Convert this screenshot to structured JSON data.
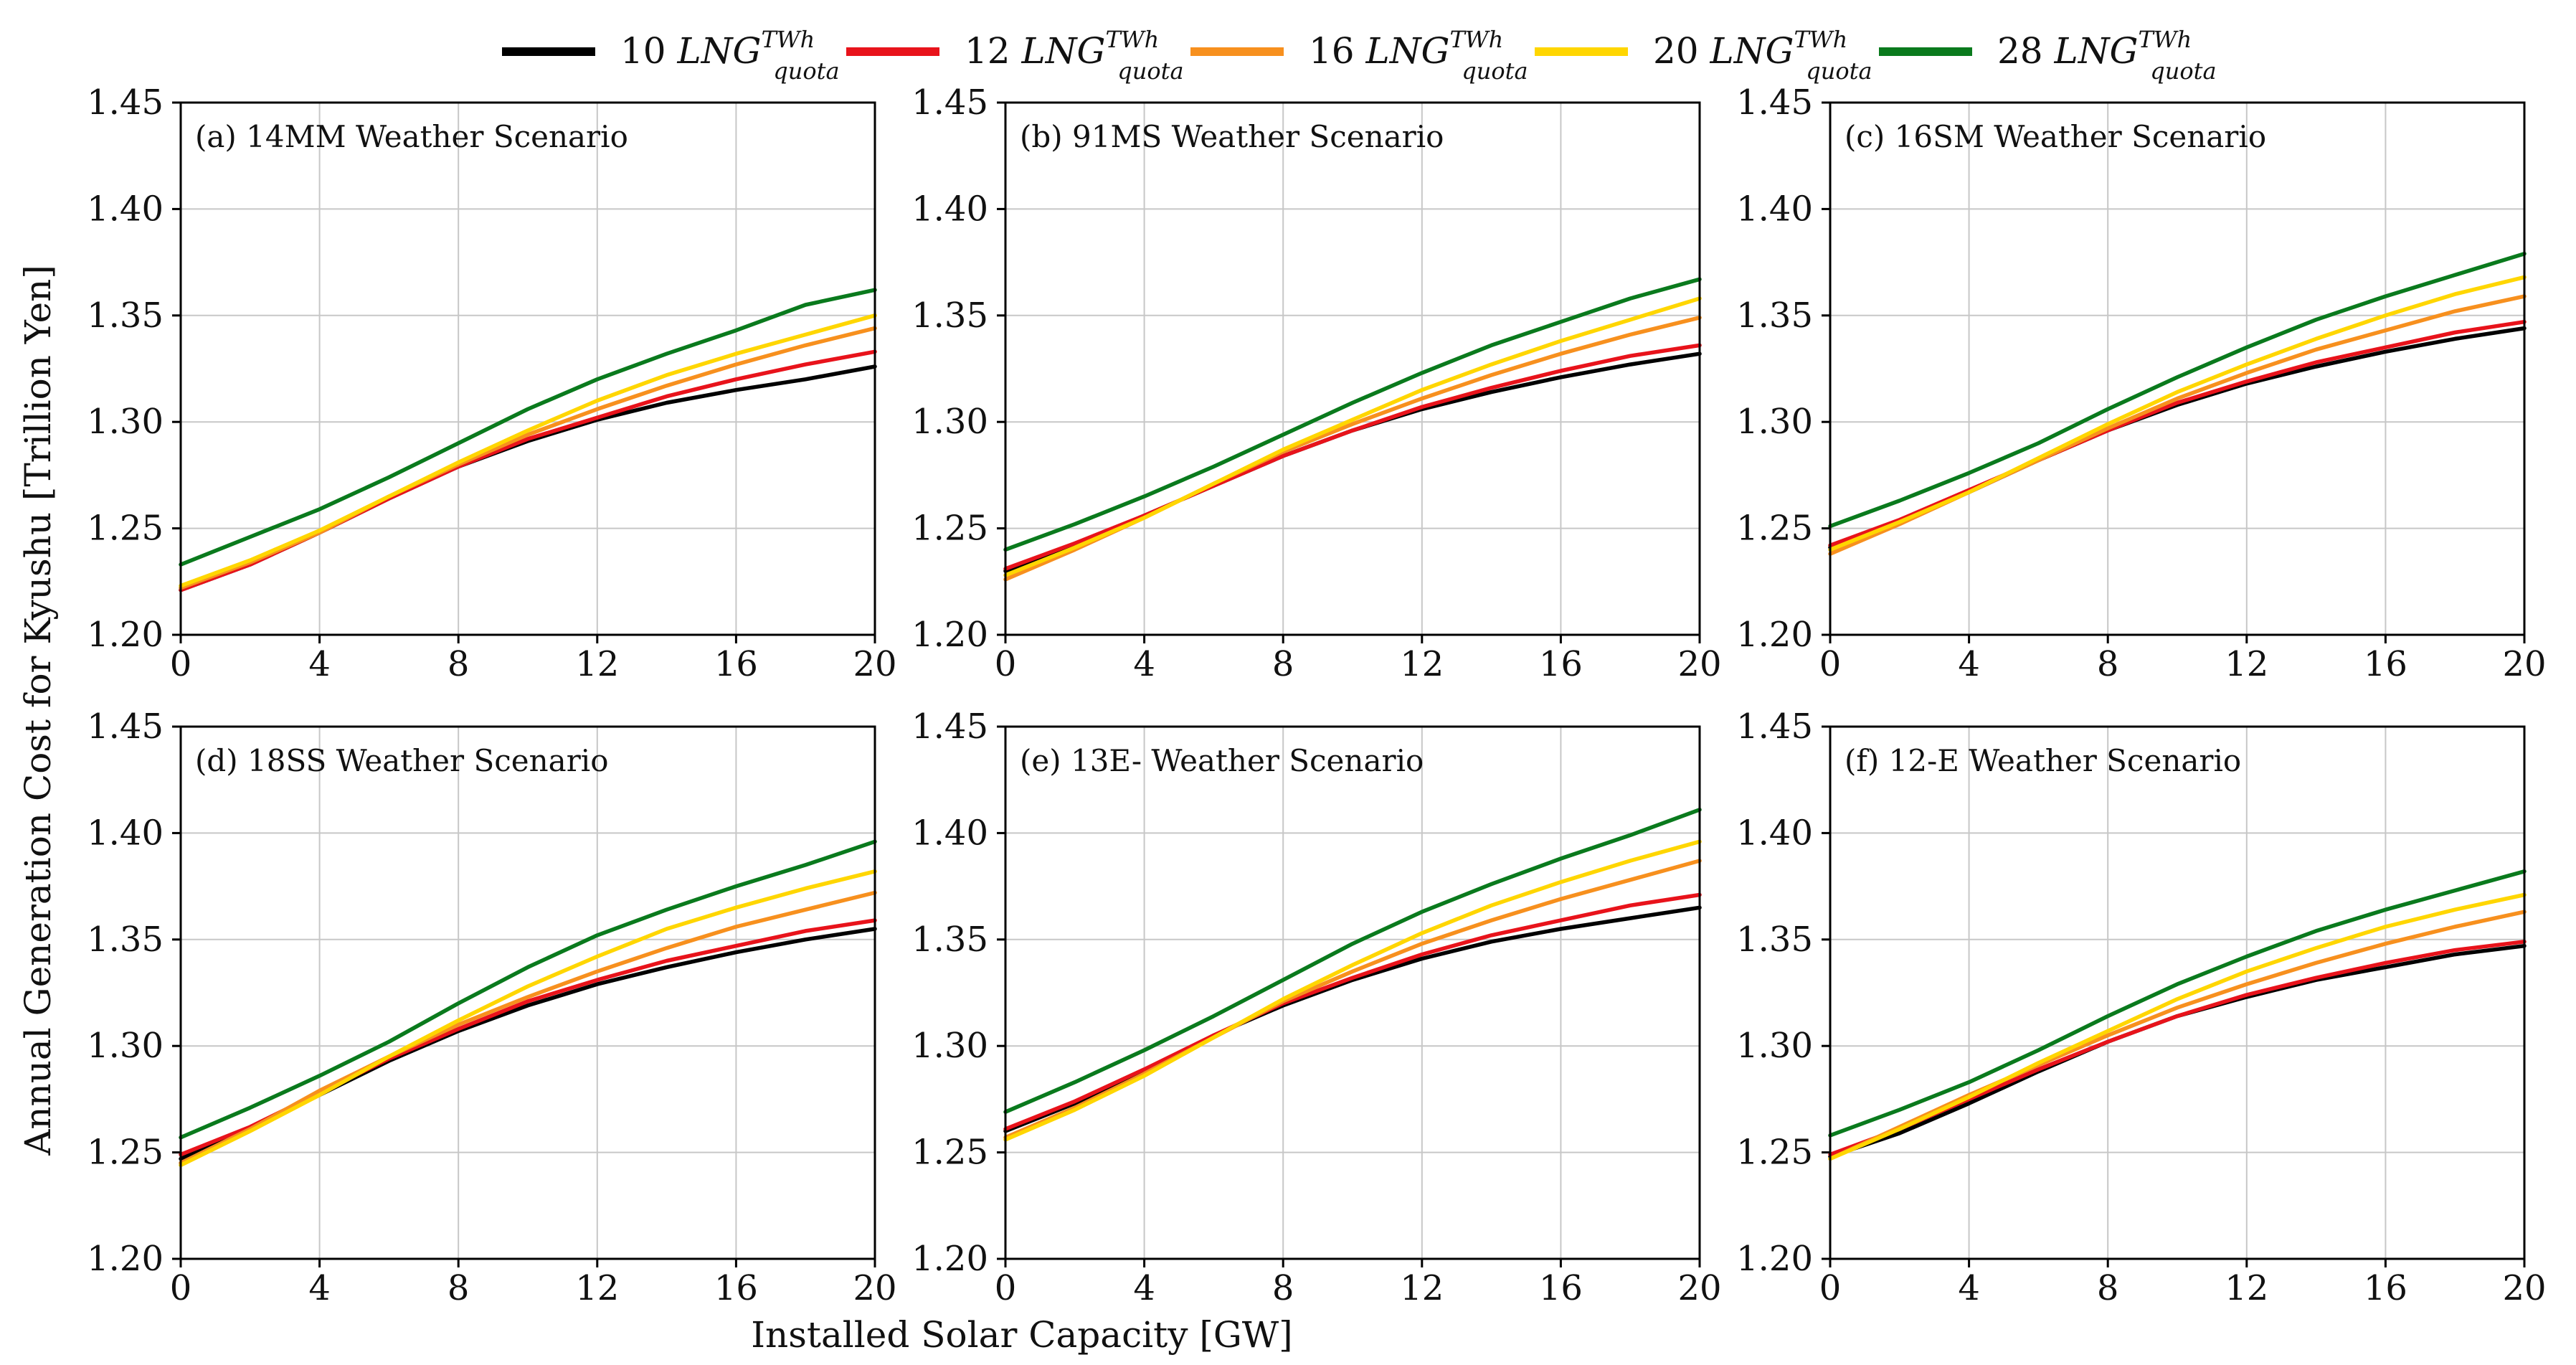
{
  "figure": {
    "ylabel": "Annual Generation Cost for Kyushu [Trillion Yen]",
    "xlabel": "Installed Solar Capacity [GW]"
  },
  "legend": {
    "symbol": "LNG",
    "superscript": "TWh",
    "subscript": "quota",
    "entries": [
      {
        "number": "10",
        "color": "#000000"
      },
      {
        "number": "12",
        "color": "#e8131b"
      },
      {
        "number": "16",
        "color": "#f7901e"
      },
      {
        "number": "20",
        "color": "#ffd600"
      },
      {
        "number": "28",
        "color": "#0a7a1d"
      }
    ]
  },
  "chart_data": [
    {
      "type": "line",
      "title": "(a) 14MM Weather Scenario",
      "xlabel": "Installed Solar Capacity [GW]",
      "ylabel": "Annual Generation Cost for Kyushu [Trillion Yen]",
      "x": [
        0,
        2,
        4,
        6,
        8,
        10,
        12,
        14,
        16,
        18,
        20
      ],
      "xlim": [
        0,
        20
      ],
      "ylim": [
        1.2,
        1.45
      ],
      "xticks": [
        0,
        4,
        8,
        12,
        16,
        20
      ],
      "yticks": [
        "1.20",
        "1.25",
        "1.30",
        "1.35",
        "1.40",
        "1.45"
      ],
      "grid": true,
      "series": [
        {
          "name": "10 LNG quota TWh",
          "values": [
            1.221,
            1.233,
            1.248,
            1.264,
            1.279,
            1.291,
            1.301,
            1.309,
            1.315,
            1.32,
            1.326
          ]
        },
        {
          "name": "12 LNG quota TWh",
          "values": [
            1.221,
            1.233,
            1.248,
            1.264,
            1.279,
            1.292,
            1.302,
            1.312,
            1.32,
            1.327,
            1.333
          ]
        },
        {
          "name": "16 LNG quota TWh",
          "values": [
            1.222,
            1.234,
            1.248,
            1.265,
            1.28,
            1.294,
            1.306,
            1.317,
            1.327,
            1.336,
            1.344
          ]
        },
        {
          "name": "20 LNG quota TWh",
          "values": [
            1.223,
            1.235,
            1.249,
            1.265,
            1.281,
            1.296,
            1.31,
            1.322,
            1.332,
            1.341,
            1.35
          ]
        },
        {
          "name": "28 LNG quota TWh",
          "values": [
            1.233,
            1.246,
            1.259,
            1.274,
            1.29,
            1.306,
            1.32,
            1.332,
            1.343,
            1.355,
            1.362
          ]
        }
      ]
    },
    {
      "type": "line",
      "title": "(b) 91MS Weather Scenario",
      "xlabel": "Installed Solar Capacity [GW]",
      "ylabel": "Annual Generation Cost for Kyushu [Trillion Yen]",
      "x": [
        0,
        2,
        4,
        6,
        8,
        10,
        12,
        14,
        16,
        18,
        20
      ],
      "xlim": [
        0,
        20
      ],
      "ylim": [
        1.2,
        1.45
      ],
      "xticks": [
        0,
        4,
        8,
        12,
        16,
        20
      ],
      "yticks": [
        "1.20",
        "1.25",
        "1.30",
        "1.35",
        "1.40",
        "1.45"
      ],
      "grid": true,
      "series": [
        {
          "name": "10 LNG quota TWh",
          "values": [
            1.23,
            1.242,
            1.256,
            1.27,
            1.284,
            1.296,
            1.306,
            1.314,
            1.321,
            1.327,
            1.332
          ]
        },
        {
          "name": "12 LNG quota TWh",
          "values": [
            1.231,
            1.243,
            1.256,
            1.27,
            1.284,
            1.296,
            1.307,
            1.316,
            1.324,
            1.331,
            1.336
          ]
        },
        {
          "name": "16 LNG quota TWh",
          "values": [
            1.226,
            1.24,
            1.255,
            1.271,
            1.286,
            1.299,
            1.311,
            1.322,
            1.332,
            1.341,
            1.349
          ]
        },
        {
          "name": "20 LNG quota TWh",
          "values": [
            1.228,
            1.241,
            1.255,
            1.271,
            1.287,
            1.301,
            1.315,
            1.327,
            1.338,
            1.348,
            1.358
          ]
        },
        {
          "name": "28 LNG quota TWh",
          "values": [
            1.24,
            1.252,
            1.265,
            1.279,
            1.294,
            1.309,
            1.323,
            1.336,
            1.347,
            1.358,
            1.367
          ]
        }
      ]
    },
    {
      "type": "line",
      "title": "(c) 16SM Weather Scenario",
      "xlabel": "Installed Solar Capacity [GW]",
      "ylabel": "Annual Generation Cost for Kyushu [Trillion Yen]",
      "x": [
        0,
        2,
        4,
        6,
        8,
        10,
        12,
        14,
        16,
        18,
        20
      ],
      "xlim": [
        0,
        20
      ],
      "ylim": [
        1.2,
        1.45
      ],
      "xticks": [
        0,
        4,
        8,
        12,
        16,
        20
      ],
      "yticks": [
        "1.20",
        "1.25",
        "1.30",
        "1.35",
        "1.40",
        "1.45"
      ],
      "grid": true,
      "series": [
        {
          "name": "10 LNG quota TWh",
          "values": [
            1.241,
            1.253,
            1.267,
            1.282,
            1.296,
            1.308,
            1.318,
            1.326,
            1.333,
            1.339,
            1.344
          ]
        },
        {
          "name": "12 LNG quota TWh",
          "values": [
            1.242,
            1.254,
            1.268,
            1.282,
            1.296,
            1.309,
            1.319,
            1.328,
            1.335,
            1.342,
            1.347
          ]
        },
        {
          "name": "16 LNG quota TWh",
          "values": [
            1.238,
            1.252,
            1.267,
            1.282,
            1.297,
            1.311,
            1.323,
            1.334,
            1.343,
            1.352,
            1.359
          ]
        },
        {
          "name": "20 LNG quota TWh",
          "values": [
            1.24,
            1.253,
            1.267,
            1.283,
            1.299,
            1.314,
            1.327,
            1.339,
            1.35,
            1.36,
            1.368
          ]
        },
        {
          "name": "28 LNG quota TWh",
          "values": [
            1.251,
            1.263,
            1.276,
            1.29,
            1.306,
            1.321,
            1.335,
            1.348,
            1.359,
            1.369,
            1.379
          ]
        }
      ]
    },
    {
      "type": "line",
      "title": "(d) 18SS Weather Scenario",
      "xlabel": "Installed Solar Capacity [GW]",
      "ylabel": "Annual Generation Cost for Kyushu [Trillion Yen]",
      "x": [
        0,
        2,
        4,
        6,
        8,
        10,
        12,
        14,
        16,
        18,
        20
      ],
      "xlim": [
        0,
        20
      ],
      "ylim": [
        1.2,
        1.45
      ],
      "xticks": [
        0,
        4,
        8,
        12,
        16,
        20
      ],
      "yticks": [
        "1.20",
        "1.25",
        "1.30",
        "1.35",
        "1.40",
        "1.45"
      ],
      "grid": true,
      "series": [
        {
          "name": "10 LNG quota TWh",
          "values": [
            1.247,
            1.261,
            1.277,
            1.293,
            1.307,
            1.319,
            1.329,
            1.337,
            1.344,
            1.35,
            1.355
          ]
        },
        {
          "name": "12 LNG quota TWh",
          "values": [
            1.249,
            1.262,
            1.278,
            1.294,
            1.308,
            1.321,
            1.331,
            1.34,
            1.347,
            1.354,
            1.359
          ]
        },
        {
          "name": "16 LNG quota TWh",
          "values": [
            1.245,
            1.261,
            1.279,
            1.295,
            1.31,
            1.323,
            1.335,
            1.346,
            1.356,
            1.364,
            1.372
          ]
        },
        {
          "name": "20 LNG quota TWh",
          "values": [
            1.244,
            1.26,
            1.277,
            1.295,
            1.312,
            1.328,
            1.342,
            1.355,
            1.365,
            1.374,
            1.382
          ]
        },
        {
          "name": "28 LNG quota TWh",
          "values": [
            1.257,
            1.271,
            1.286,
            1.302,
            1.32,
            1.337,
            1.352,
            1.364,
            1.375,
            1.385,
            1.396
          ]
        }
      ]
    },
    {
      "type": "line",
      "title": "(e) 13E- Weather Scenario",
      "xlabel": "Installed Solar Capacity [GW]",
      "ylabel": "Annual Generation Cost for Kyushu [Trillion Yen]",
      "x": [
        0,
        2,
        4,
        6,
        8,
        10,
        12,
        14,
        16,
        18,
        20
      ],
      "xlim": [
        0,
        20
      ],
      "ylim": [
        1.2,
        1.45
      ],
      "xticks": [
        0,
        4,
        8,
        12,
        16,
        20
      ],
      "yticks": [
        "1.20",
        "1.25",
        "1.30",
        "1.35",
        "1.40",
        "1.45"
      ],
      "grid": true,
      "series": [
        {
          "name": "10 LNG quota TWh",
          "values": [
            1.26,
            1.273,
            1.288,
            1.305,
            1.319,
            1.331,
            1.341,
            1.349,
            1.355,
            1.36,
            1.365
          ]
        },
        {
          "name": "12 LNG quota TWh",
          "values": [
            1.261,
            1.274,
            1.289,
            1.305,
            1.32,
            1.332,
            1.343,
            1.352,
            1.359,
            1.366,
            1.371
          ]
        },
        {
          "name": "16 LNG quota TWh",
          "values": [
            1.257,
            1.271,
            1.287,
            1.304,
            1.321,
            1.335,
            1.348,
            1.359,
            1.369,
            1.378,
            1.387
          ]
        },
        {
          "name": "20 LNG quota TWh",
          "values": [
            1.256,
            1.27,
            1.286,
            1.304,
            1.322,
            1.338,
            1.353,
            1.366,
            1.377,
            1.387,
            1.396
          ]
        },
        {
          "name": "28 LNG quota TWh",
          "values": [
            1.269,
            1.283,
            1.298,
            1.314,
            1.331,
            1.348,
            1.363,
            1.376,
            1.388,
            1.399,
            1.411
          ]
        }
      ]
    },
    {
      "type": "line",
      "title": "(f) 12-E Weather Scenario",
      "xlabel": "Installed Solar Capacity [GW]",
      "ylabel": "Annual Generation Cost for Kyushu [Trillion Yen]",
      "x": [
        0,
        2,
        4,
        6,
        8,
        10,
        12,
        14,
        16,
        18,
        20
      ],
      "xlim": [
        0,
        20
      ],
      "ylim": [
        1.2,
        1.45
      ],
      "xticks": [
        0,
        4,
        8,
        12,
        16,
        20
      ],
      "yticks": [
        "1.20",
        "1.25",
        "1.30",
        "1.35",
        "1.40",
        "1.45"
      ],
      "grid": true,
      "series": [
        {
          "name": "10 LNG quota TWh",
          "values": [
            1.248,
            1.259,
            1.273,
            1.288,
            1.302,
            1.314,
            1.323,
            1.331,
            1.337,
            1.343,
            1.347
          ]
        },
        {
          "name": "12 LNG quota TWh",
          "values": [
            1.249,
            1.261,
            1.275,
            1.289,
            1.302,
            1.314,
            1.324,
            1.332,
            1.339,
            1.345,
            1.349
          ]
        },
        {
          "name": "16 LNG quota TWh",
          "values": [
            1.247,
            1.262,
            1.277,
            1.291,
            1.305,
            1.318,
            1.329,
            1.339,
            1.348,
            1.356,
            1.363
          ]
        },
        {
          "name": "20 LNG quota TWh",
          "values": [
            1.247,
            1.261,
            1.276,
            1.292,
            1.307,
            1.322,
            1.335,
            1.346,
            1.356,
            1.364,
            1.371
          ]
        },
        {
          "name": "28 LNG quota TWh",
          "values": [
            1.258,
            1.27,
            1.283,
            1.298,
            1.314,
            1.329,
            1.342,
            1.354,
            1.364,
            1.373,
            1.382
          ]
        }
      ]
    }
  ]
}
